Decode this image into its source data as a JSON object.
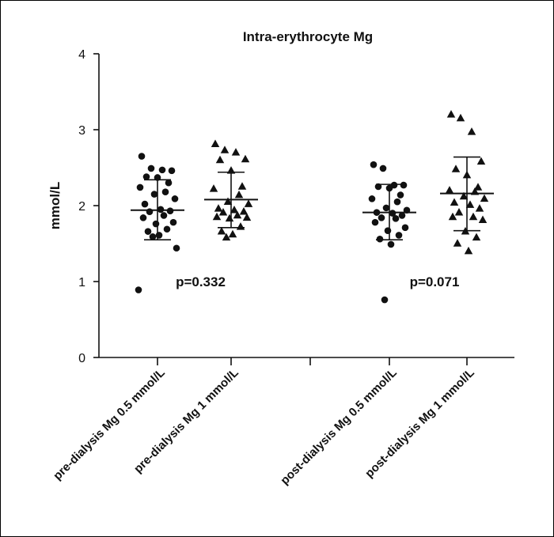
{
  "chart_data": {
    "type": "scatter",
    "title": "Intra-erythrocyte Mg",
    "ylabel": "mmol/L",
    "xlabel": "",
    "ylim": [
      0,
      4
    ],
    "yticks": [
      0,
      1,
      2,
      3,
      4
    ],
    "grid": false,
    "categories": [
      "pre-dialysis Mg 0.5 mmol/L",
      "pre-dialysis Mg 1 mmol/L",
      "post-dialysis Mg 0.5 mmol/L",
      "post-dialysis Mg 1 mmol/L"
    ],
    "series": [
      {
        "category": "pre-dialysis Mg 0.5 mmol/L",
        "marker": "circle",
        "mean": 1.94,
        "sd_low": 1.55,
        "sd_high": 2.34,
        "values": [
          2.65,
          2.49,
          2.47,
          2.46,
          2.38,
          2.37,
          2.3,
          2.24,
          2.18,
          2.15,
          2.09,
          2.02,
          1.95,
          1.93,
          1.92,
          1.87,
          1.84,
          1.78,
          1.76,
          1.69,
          1.66,
          1.61,
          1.59,
          1.44,
          0.89
        ]
      },
      {
        "category": "pre-dialysis Mg 1 mmol/L",
        "marker": "triangle",
        "mean": 2.08,
        "sd_low": 1.71,
        "sd_high": 2.44,
        "values": [
          2.81,
          2.73,
          2.7,
          2.61,
          2.6,
          2.46,
          2.25,
          2.22,
          2.14,
          2.05,
          2.02,
          1.96,
          1.94,
          1.92,
          1.91,
          1.87,
          1.85,
          1.84,
          1.83,
          1.72,
          1.66,
          1.62,
          1.58
        ]
      },
      {
        "category": "post-dialysis Mg 0.5 mmol/L",
        "marker": "circle",
        "mean": 1.91,
        "sd_low": 1.55,
        "sd_high": 2.28,
        "values": [
          2.54,
          2.49,
          2.27,
          2.27,
          2.25,
          2.23,
          2.14,
          2.09,
          2.05,
          1.97,
          1.94,
          1.91,
          1.9,
          1.87,
          1.84,
          1.83,
          1.78,
          1.71,
          1.67,
          1.61,
          1.56,
          1.49,
          0.76
        ]
      },
      {
        "category": "post-dialysis Mg 1 mmol/L",
        "marker": "triangle",
        "mean": 2.16,
        "sd_low": 1.67,
        "sd_high": 2.64,
        "values": [
          3.2,
          3.15,
          2.97,
          2.58,
          2.48,
          2.4,
          2.24,
          2.2,
          2.18,
          2.12,
          2.09,
          2.04,
          2.01,
          1.96,
          1.91,
          1.85,
          1.85,
          1.81,
          1.66,
          1.58,
          1.5,
          1.4
        ]
      }
    ],
    "annotations": [
      {
        "text": "p=0.332",
        "y": 1.0,
        "between": [
          0,
          1
        ]
      },
      {
        "text": "p=0.071",
        "y": 1.0,
        "between": [
          2,
          3
        ]
      }
    ]
  }
}
